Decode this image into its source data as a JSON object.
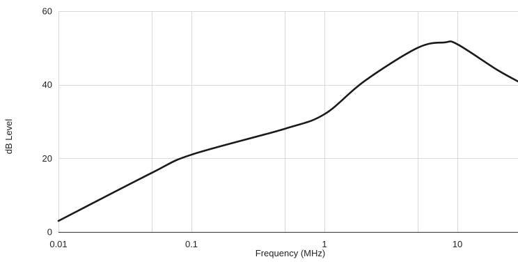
{
  "chart_data": {
    "type": "line",
    "title": "",
    "xlabel": "Frequency (MHz)",
    "ylabel": "dB Level",
    "x_scale": "log",
    "xlim": [
      0.01,
      30
    ],
    "ylim": [
      0,
      60
    ],
    "x_ticks": [
      0.01,
      0.1,
      1,
      10
    ],
    "x_tick_labels": [
      "0.01",
      "0.1",
      "1",
      "10"
    ],
    "y_ticks": [
      0,
      20,
      40,
      60
    ],
    "y_tick_labels": [
      "0",
      "20",
      "40",
      "60"
    ],
    "x_minor_gridlines": [
      0.05,
      0.5,
      5
    ],
    "grid": true,
    "legend": "none",
    "series": [
      {
        "color": "#1a1a1a",
        "x": [
          0.01,
          0.05,
          0.1,
          0.5,
          1,
          2,
          5,
          8,
          10,
          20,
          30
        ],
        "y": [
          3,
          16,
          21,
          28,
          32,
          41,
          50,
          51.5,
          51,
          44,
          40.5
        ]
      }
    ]
  }
}
